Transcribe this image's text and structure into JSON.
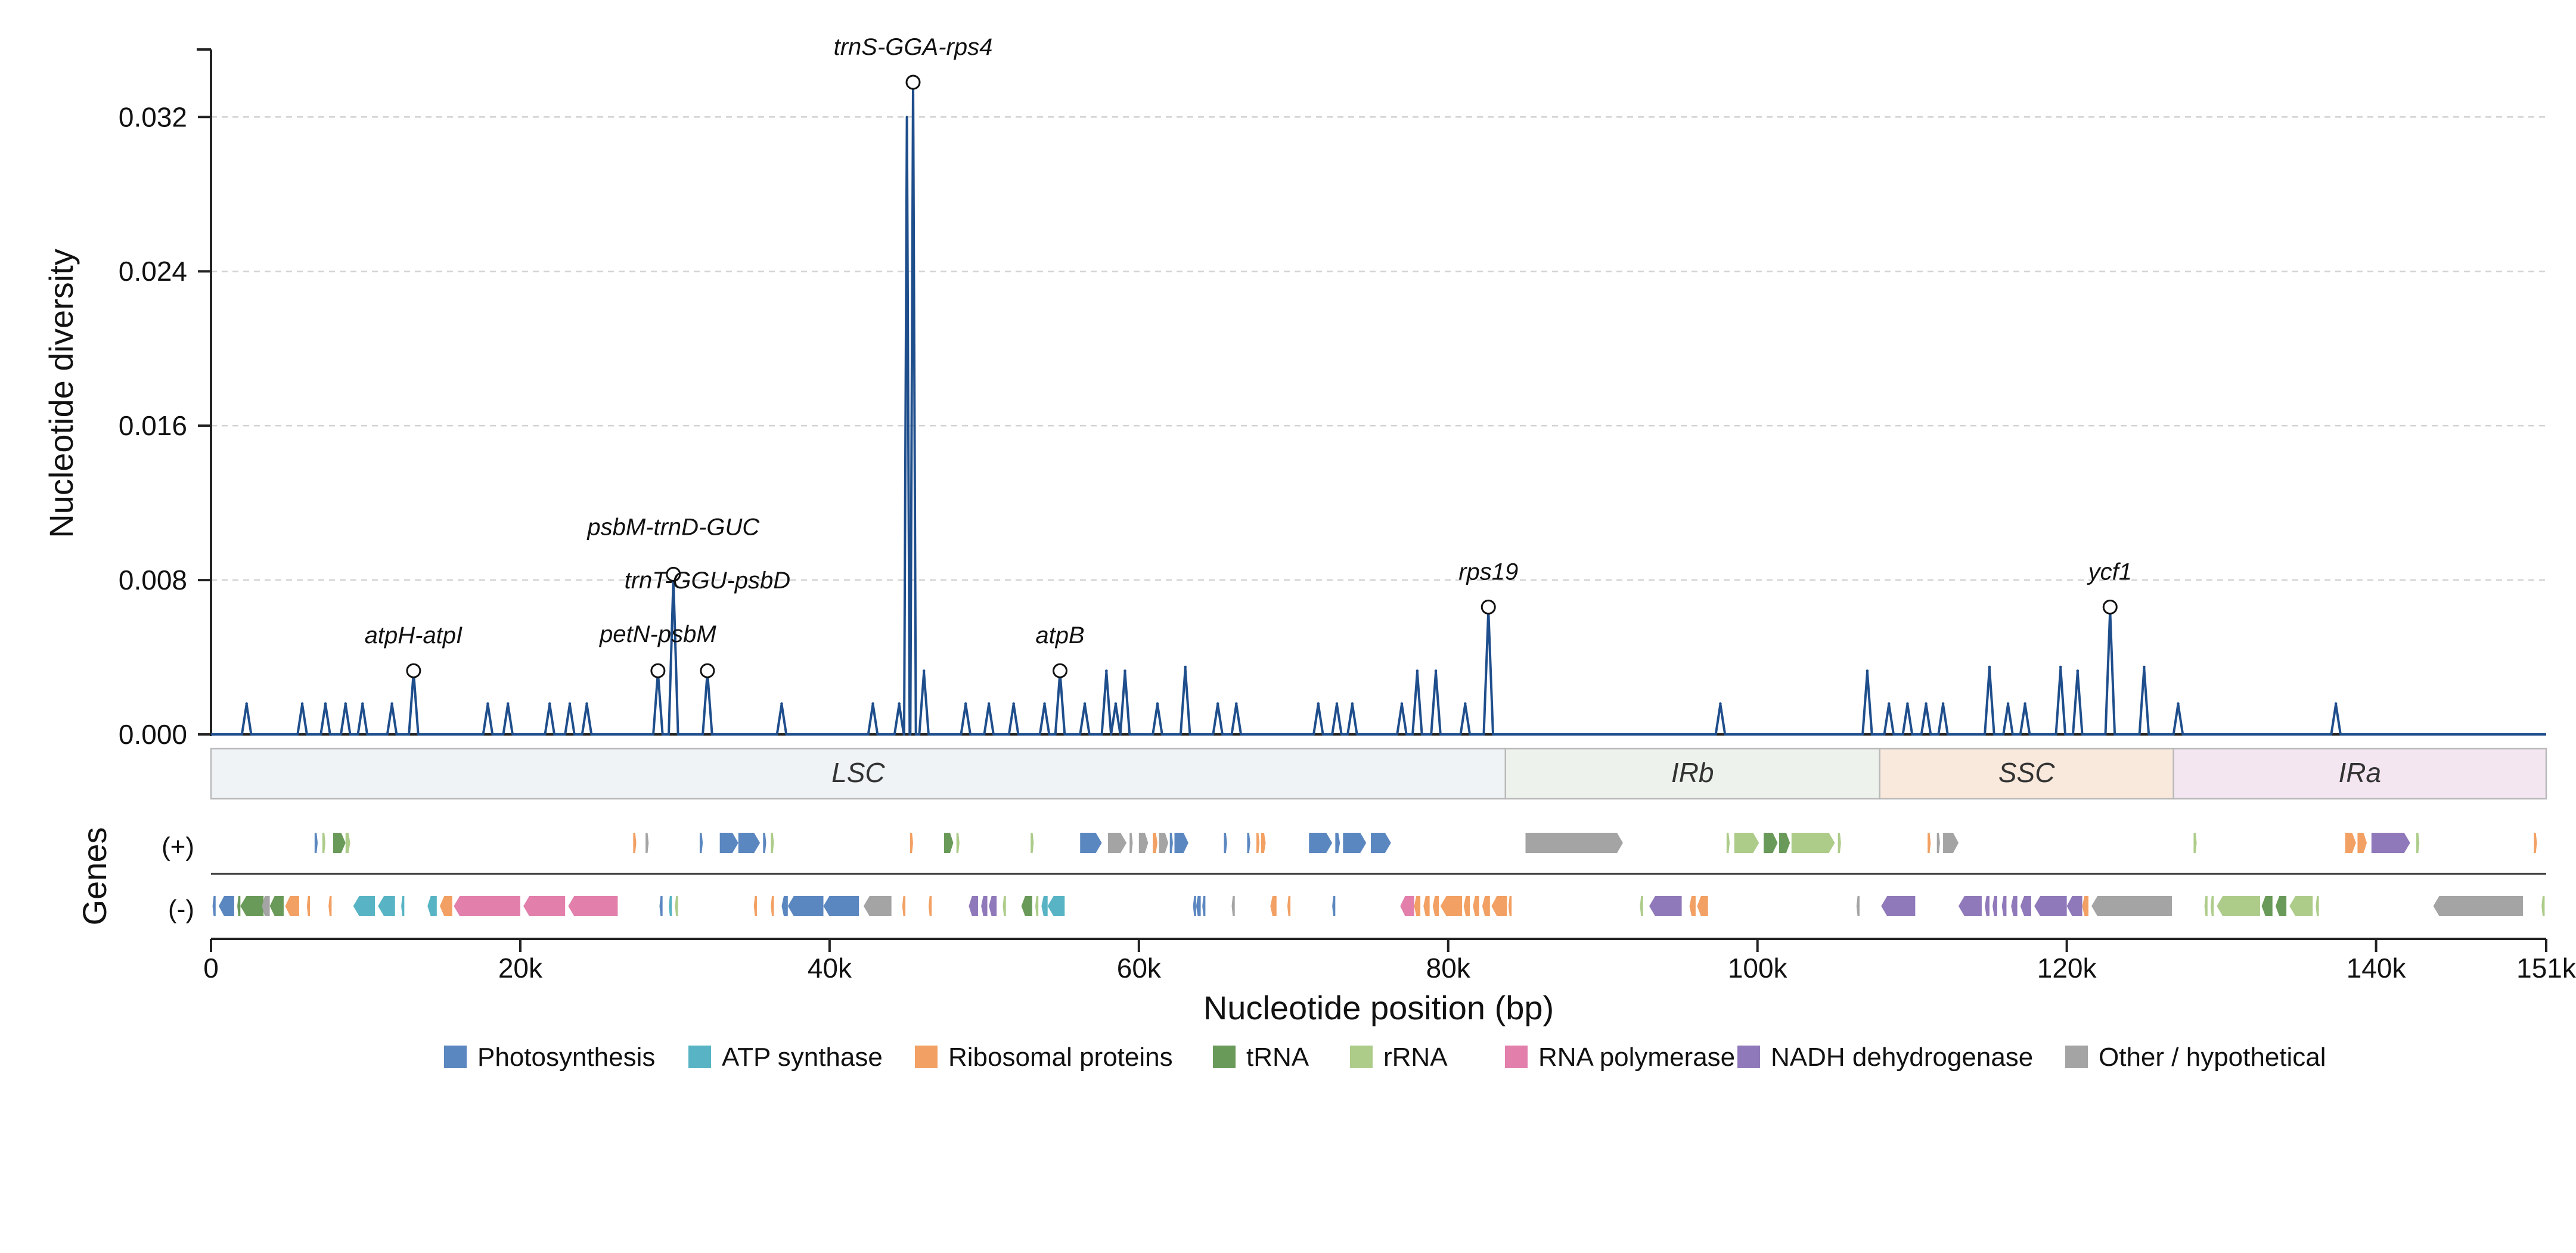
{
  "chart_data": {
    "type": "line",
    "ylabel": "Nucleotide diversity",
    "xlabel": "Nucleotide position (bp)",
    "genes_label": "Genes",
    "strand_labels": {
      "plus": "(+)",
      "minus": "(-)"
    },
    "xlim": [
      0,
      151000
    ],
    "ylim": [
      0,
      0.0355
    ],
    "x_ticks": [
      {
        "value": 0,
        "label": "0"
      },
      {
        "value": 20000,
        "label": "20k"
      },
      {
        "value": 40000,
        "label": "40k"
      },
      {
        "value": 60000,
        "label": "60k"
      },
      {
        "value": 80000,
        "label": "80k"
      },
      {
        "value": 100000,
        "label": "100k"
      },
      {
        "value": 120000,
        "label": "120k"
      },
      {
        "value": 140000,
        "label": "140k"
      },
      {
        "value": 151000,
        "label": "151k"
      }
    ],
    "y_ticks": [
      {
        "value": 0,
        "label": "0.000"
      },
      {
        "value": 0.008,
        "label": "0.008"
      },
      {
        "value": 0.016,
        "label": "0.016"
      },
      {
        "value": 0.024,
        "label": "0.024"
      },
      {
        "value": 0.032,
        "label": "0.032"
      }
    ],
    "grid": "horizontal dashed",
    "line_color": "#1f4e8c",
    "peaks": [
      {
        "x": 2300,
        "y": 0.0016
      },
      {
        "x": 5900,
        "y": 0.0016
      },
      {
        "x": 7400,
        "y": 0.0016
      },
      {
        "x": 8700,
        "y": 0.0016
      },
      {
        "x": 9800,
        "y": 0.0016
      },
      {
        "x": 11700,
        "y": 0.0016
      },
      {
        "x": 13100,
        "y": 0.0033
      },
      {
        "x": 17900,
        "y": 0.0016
      },
      {
        "x": 19200,
        "y": 0.0016
      },
      {
        "x": 21900,
        "y": 0.0016
      },
      {
        "x": 23200,
        "y": 0.0016
      },
      {
        "x": 24300,
        "y": 0.0016
      },
      {
        "x": 28900,
        "y": 0.0033
      },
      {
        "x": 29900,
        "y": 0.0083
      },
      {
        "x": 32100,
        "y": 0.0033
      },
      {
        "x": 36900,
        "y": 0.0016
      },
      {
        "x": 42800,
        "y": 0.0016
      },
      {
        "x": 44500,
        "y": 0.0016
      },
      {
        "x": 45000,
        "y": 0.032
      },
      {
        "x": 45400,
        "y": 0.0338
      },
      {
        "x": 46100,
        "y": 0.0033
      },
      {
        "x": 48800,
        "y": 0.0016
      },
      {
        "x": 50300,
        "y": 0.0016
      },
      {
        "x": 51900,
        "y": 0.0016
      },
      {
        "x": 53900,
        "y": 0.0016
      },
      {
        "x": 54900,
        "y": 0.0033
      },
      {
        "x": 56500,
        "y": 0.0016
      },
      {
        "x": 57900,
        "y": 0.0033
      },
      {
        "x": 58500,
        "y": 0.0016
      },
      {
        "x": 59100,
        "y": 0.0033
      },
      {
        "x": 61200,
        "y": 0.0016
      },
      {
        "x": 63000,
        "y": 0.0035
      },
      {
        "x": 65100,
        "y": 0.0016
      },
      {
        "x": 66300,
        "y": 0.0016
      },
      {
        "x": 71600,
        "y": 0.0016
      },
      {
        "x": 72800,
        "y": 0.0016
      },
      {
        "x": 73800,
        "y": 0.0016
      },
      {
        "x": 77000,
        "y": 0.0016
      },
      {
        "x": 78000,
        "y": 0.0033
      },
      {
        "x": 79200,
        "y": 0.0033
      },
      {
        "x": 81100,
        "y": 0.0016
      },
      {
        "x": 82600,
        "y": 0.0066
      },
      {
        "x": 97600,
        "y": 0.0016
      },
      {
        "x": 107100,
        "y": 0.0033
      },
      {
        "x": 108500,
        "y": 0.0016
      },
      {
        "x": 109700,
        "y": 0.0016
      },
      {
        "x": 110900,
        "y": 0.0016
      },
      {
        "x": 112000,
        "y": 0.0016
      },
      {
        "x": 115000,
        "y": 0.0035
      },
      {
        "x": 116200,
        "y": 0.0016
      },
      {
        "x": 117300,
        "y": 0.0016
      },
      {
        "x": 119600,
        "y": 0.0035
      },
      {
        "x": 120700,
        "y": 0.0033
      },
      {
        "x": 122800,
        "y": 0.0066
      },
      {
        "x": 125000,
        "y": 0.0035
      },
      {
        "x": 127200,
        "y": 0.0016
      },
      {
        "x": 137400,
        "y": 0.0016
      }
    ],
    "annotations": [
      {
        "label": "atpH-atpI",
        "x": 13100,
        "y": 0.0033
      },
      {
        "label": "psbM-trnD-GUC",
        "x": 29900,
        "y": 0.0083
      },
      {
        "label": "trnT-GGU-psbD",
        "x": 32100,
        "y": 0.0033
      },
      {
        "label": "petN-psbM",
        "x": 28900,
        "y": 0.0033
      },
      {
        "label": "trnS-GGA-rps4",
        "x": 45400,
        "y": 0.0338
      },
      {
        "label": "atpB",
        "x": 54900,
        "y": 0.0033
      },
      {
        "label": "rps19",
        "x": 82600,
        "y": 0.0066
      },
      {
        "label": "ycf1",
        "x": 122800,
        "y": 0.0066
      }
    ],
    "regions": [
      {
        "name": "LSC",
        "start": 0,
        "end": 83700,
        "color": "#eff3f6"
      },
      {
        "name": "IRb",
        "start": 83700,
        "end": 107900,
        "color": "#edf3ec"
      },
      {
        "name": "SSC",
        "start": 107900,
        "end": 126900,
        "color": "#f9e9dc"
      },
      {
        "name": "IRa",
        "start": 126900,
        "end": 151000,
        "color": "#f3e6f1"
      }
    ],
    "gene_categories": [
      {
        "key": "photo",
        "name": "Photosynthesis",
        "color": "#5b87c0"
      },
      {
        "key": "atp",
        "name": "ATP synthase",
        "color": "#58b4c4"
      },
      {
        "key": "ribo",
        "name": "Ribosomal proteins",
        "color": "#f2a063"
      },
      {
        "key": "trna",
        "name": "tRNA",
        "color": "#6a9a59"
      },
      {
        "key": "rrna",
        "name": "rRNA",
        "color": "#adcc8a"
      },
      {
        "key": "rnap",
        "name": "RNA polymerase",
        "color": "#e27fab"
      },
      {
        "key": "ndh",
        "name": "NADH dehydrogenase",
        "color": "#9079ba"
      },
      {
        "key": "other",
        "name": "Other / hypothetical",
        "color": "#a4a4a4"
      }
    ],
    "genes_plus": [
      {
        "s": 6700,
        "e": 6900,
        "c": "photo"
      },
      {
        "s": 7200,
        "e": 7400,
        "c": "rrna"
      },
      {
        "s": 7900,
        "e": 8700,
        "c": "trna"
      },
      {
        "s": 8700,
        "e": 9000,
        "c": "rrna"
      },
      {
        "s": 27300,
        "e": 27500,
        "c": "ribo"
      },
      {
        "s": 28100,
        "e": 28300,
        "c": "other"
      },
      {
        "s": 31600,
        "e": 31800,
        "c": "photo"
      },
      {
        "s": 32900,
        "e": 34100,
        "c": "photo"
      },
      {
        "s": 34100,
        "e": 35500,
        "c": "photo"
      },
      {
        "s": 35700,
        "e": 35900,
        "c": "photo"
      },
      {
        "s": 36200,
        "e": 36400,
        "c": "rrna"
      },
      {
        "s": 45200,
        "e": 45400,
        "c": "ribo"
      },
      {
        "s": 47400,
        "e": 48000,
        "c": "trna"
      },
      {
        "s": 48200,
        "e": 48400,
        "c": "rrna"
      },
      {
        "s": 53000,
        "e": 53200,
        "c": "rrna"
      },
      {
        "s": 56200,
        "e": 57600,
        "c": "photo"
      },
      {
        "s": 58000,
        "e": 59200,
        "c": "other"
      },
      {
        "s": 59400,
        "e": 59600,
        "c": "other"
      },
      {
        "s": 60000,
        "e": 60600,
        "c": "other"
      },
      {
        "s": 60900,
        "e": 61200,
        "c": "ribo"
      },
      {
        "s": 61300,
        "e": 61900,
        "c": "other"
      },
      {
        "s": 62000,
        "e": 62200,
        "c": "photo"
      },
      {
        "s": 62300,
        "e": 63200,
        "c": "photo"
      },
      {
        "s": 65500,
        "e": 65700,
        "c": "photo"
      },
      {
        "s": 67000,
        "e": 67200,
        "c": "photo"
      },
      {
        "s": 67600,
        "e": 67800,
        "c": "ribo"
      },
      {
        "s": 67900,
        "e": 68200,
        "c": "ribo"
      },
      {
        "s": 71000,
        "e": 72500,
        "c": "photo"
      },
      {
        "s": 72700,
        "e": 73000,
        "c": "photo"
      },
      {
        "s": 73200,
        "e": 74700,
        "c": "photo"
      },
      {
        "s": 75000,
        "e": 76300,
        "c": "photo"
      },
      {
        "s": 85000,
        "e": 91300,
        "c": "other"
      },
      {
        "s": 98000,
        "e": 98200,
        "c": "rrna"
      },
      {
        "s": 98500,
        "e": 100100,
        "c": "rrna"
      },
      {
        "s": 100400,
        "e": 101300,
        "c": "trna"
      },
      {
        "s": 101400,
        "e": 102100,
        "c": "trna"
      },
      {
        "s": 102200,
        "e": 105000,
        "c": "rrna"
      },
      {
        "s": 105200,
        "e": 105400,
        "c": "rrna"
      },
      {
        "s": 111000,
        "e": 111200,
        "c": "ribo"
      },
      {
        "s": 111600,
        "e": 111800,
        "c": "other"
      },
      {
        "s": 112000,
        "e": 113000,
        "c": "other"
      },
      {
        "s": 128200,
        "e": 128400,
        "c": "rrna"
      },
      {
        "s": 138000,
        "e": 138700,
        "c": "ribo"
      },
      {
        "s": 138800,
        "e": 139400,
        "c": "ribo"
      },
      {
        "s": 139700,
        "e": 142200,
        "c": "ndh"
      },
      {
        "s": 142600,
        "e": 142800,
        "c": "rrna"
      },
      {
        "s": 150200,
        "e": 150400,
        "c": "ribo"
      }
    ],
    "genes_minus": [
      {
        "s": 100,
        "e": 300,
        "c": "photo"
      },
      {
        "s": 500,
        "e": 1500,
        "c": "photo"
      },
      {
        "s": 1700,
        "e": 1900,
        "c": "trna"
      },
      {
        "s": 1900,
        "e": 3400,
        "c": "trna"
      },
      {
        "s": 3300,
        "e": 3800,
        "c": "other"
      },
      {
        "s": 3800,
        "e": 4700,
        "c": "trna"
      },
      {
        "s": 4800,
        "e": 5700,
        "c": "ribo"
      },
      {
        "s": 6200,
        "e": 6400,
        "c": "ribo"
      },
      {
        "s": 7600,
        "e": 7800,
        "c": "ribo"
      },
      {
        "s": 9200,
        "e": 10600,
        "c": "atp"
      },
      {
        "s": 10800,
        "e": 11900,
        "c": "atp"
      },
      {
        "s": 12300,
        "e": 12500,
        "c": "atp"
      },
      {
        "s": 14000,
        "e": 14600,
        "c": "atp"
      },
      {
        "s": 14800,
        "e": 15600,
        "c": "ribo"
      },
      {
        "s": 15700,
        "e": 20000,
        "c": "rnap"
      },
      {
        "s": 20200,
        "e": 22900,
        "c": "rnap"
      },
      {
        "s": 23100,
        "e": 26300,
        "c": "rnap"
      },
      {
        "s": 29000,
        "e": 29200,
        "c": "photo"
      },
      {
        "s": 29600,
        "e": 29800,
        "c": "atp"
      },
      {
        "s": 30000,
        "e": 30200,
        "c": "rrna"
      },
      {
        "s": 35100,
        "e": 35300,
        "c": "ribo"
      },
      {
        "s": 36200,
        "e": 36400,
        "c": "ribo"
      },
      {
        "s": 36900,
        "e": 37300,
        "c": "photo"
      },
      {
        "s": 37300,
        "e": 39600,
        "c": "photo"
      },
      {
        "s": 39600,
        "e": 41900,
        "c": "photo"
      },
      {
        "s": 42200,
        "e": 44000,
        "c": "other"
      },
      {
        "s": 44700,
        "e": 44900,
        "c": "ribo"
      },
      {
        "s": 46400,
        "e": 46600,
        "c": "ribo"
      },
      {
        "s": 49000,
        "e": 49600,
        "c": "ndh"
      },
      {
        "s": 49800,
        "e": 50200,
        "c": "ndh"
      },
      {
        "s": 50300,
        "e": 50800,
        "c": "ndh"
      },
      {
        "s": 51200,
        "e": 51400,
        "c": "rrna"
      },
      {
        "s": 52400,
        "e": 53100,
        "c": "trna"
      },
      {
        "s": 53300,
        "e": 53500,
        "c": "rrna"
      },
      {
        "s": 53700,
        "e": 54100,
        "c": "atp"
      },
      {
        "s": 54100,
        "e": 55200,
        "c": "atp"
      },
      {
        "s": 63500,
        "e": 63700,
        "c": "photo"
      },
      {
        "s": 63700,
        "e": 64000,
        "c": "photo"
      },
      {
        "s": 64100,
        "e": 64300,
        "c": "photo"
      },
      {
        "s": 66000,
        "e": 66200,
        "c": "other"
      },
      {
        "s": 68500,
        "e": 68900,
        "c": "ribo"
      },
      {
        "s": 69600,
        "e": 69800,
        "c": "ribo"
      },
      {
        "s": 72500,
        "e": 72700,
        "c": "photo"
      },
      {
        "s": 76900,
        "e": 77800,
        "c": "rnap"
      },
      {
        "s": 77800,
        "e": 78200,
        "c": "ribo"
      },
      {
        "s": 78400,
        "e": 78800,
        "c": "ribo"
      },
      {
        "s": 79000,
        "e": 79400,
        "c": "ribo"
      },
      {
        "s": 79500,
        "e": 80900,
        "c": "ribo"
      },
      {
        "s": 81000,
        "e": 81400,
        "c": "ribo"
      },
      {
        "s": 81600,
        "e": 82000,
        "c": "ribo"
      },
      {
        "s": 82200,
        "e": 82700,
        "c": "ribo"
      },
      {
        "s": 82800,
        "e": 83800,
        "c": "ribo"
      },
      {
        "s": 83900,
        "e": 84100,
        "c": "ribo"
      },
      {
        "s": 92400,
        "e": 92600,
        "c": "rrna"
      },
      {
        "s": 93000,
        "e": 95100,
        "c": "ndh"
      },
      {
        "s": 95600,
        "e": 96000,
        "c": "ribo"
      },
      {
        "s": 96100,
        "e": 96800,
        "c": "ribo"
      },
      {
        "s": 106400,
        "e": 106600,
        "c": "other"
      },
      {
        "s": 108000,
        "e": 110200,
        "c": "ndh"
      },
      {
        "s": 113000,
        "e": 114500,
        "c": "ndh"
      },
      {
        "s": 114700,
        "e": 115000,
        "c": "ndh"
      },
      {
        "s": 115200,
        "e": 115500,
        "c": "ndh"
      },
      {
        "s": 115800,
        "e": 116100,
        "c": "ndh"
      },
      {
        "s": 116400,
        "e": 116800,
        "c": "ndh"
      },
      {
        "s": 117000,
        "e": 117700,
        "c": "ndh"
      },
      {
        "s": 117900,
        "e": 120000,
        "c": "ndh"
      },
      {
        "s": 120000,
        "e": 121000,
        "c": "ndh"
      },
      {
        "s": 121000,
        "e": 121400,
        "c": "ribo"
      },
      {
        "s": 121600,
        "e": 126800,
        "c": "other"
      },
      {
        "s": 128900,
        "e": 129100,
        "c": "rrna"
      },
      {
        "s": 129300,
        "e": 129500,
        "c": "rrna"
      },
      {
        "s": 129700,
        "e": 132500,
        "c": "rrna"
      },
      {
        "s": 132600,
        "e": 133300,
        "c": "trna"
      },
      {
        "s": 133500,
        "e": 134200,
        "c": "trna"
      },
      {
        "s": 134400,
        "e": 135900,
        "c": "rrna"
      },
      {
        "s": 136100,
        "e": 136300,
        "c": "rrna"
      },
      {
        "s": 143700,
        "e": 149500,
        "c": "other"
      },
      {
        "s": 150700,
        "e": 150900,
        "c": "rrna"
      }
    ]
  }
}
